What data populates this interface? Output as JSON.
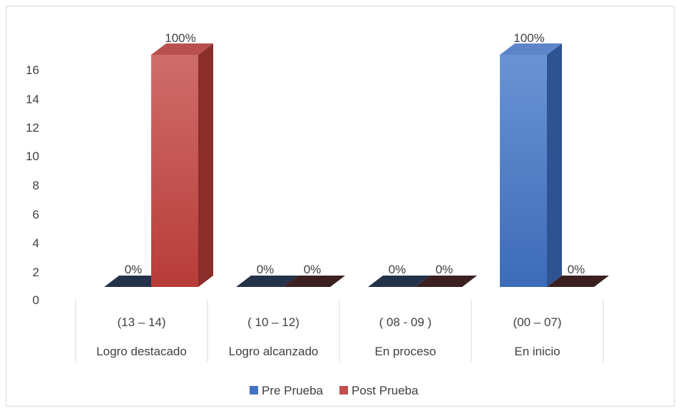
{
  "chart_data": {
    "type": "bar",
    "bar_style": "3d-clustered",
    "categories": [
      {
        "range": "(13 – 14)",
        "name": "Logro destacado"
      },
      {
        "range": "( 10 – 12)",
        "name": "Logro alcanzado"
      },
      {
        "range": "( 08 - 09 )",
        "name": "En proceso"
      },
      {
        "range": "(00 – 07)",
        "name": "En inicio"
      }
    ],
    "series": [
      {
        "name": "Pre Prueba",
        "color": "#4472c4",
        "values": [
          0,
          0,
          0,
          16
        ],
        "labels": [
          "0%",
          "0%",
          "0%",
          "100%"
        ]
      },
      {
        "name": "Post Prueba",
        "color": "#c0504d",
        "values": [
          16,
          0,
          0,
          0
        ],
        "labels": [
          "100%",
          "0%",
          "0%",
          "0%"
        ]
      }
    ],
    "yticks": [
      0,
      2,
      4,
      6,
      8,
      10,
      12,
      14,
      16
    ],
    "ylim": [
      0,
      16
    ],
    "legend_position": "bottom",
    "grid": false
  }
}
